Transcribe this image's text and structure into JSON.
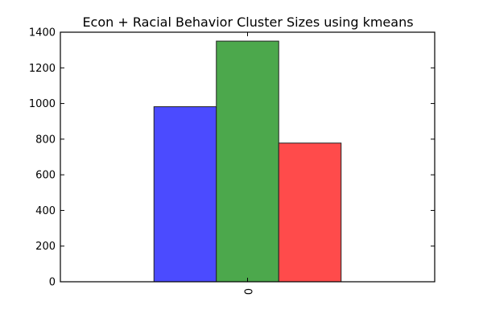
{
  "chart_data": {
    "type": "bar",
    "title": "Econ + Racial Behavior Cluster Sizes using kmeans",
    "xlabel": "",
    "ylabel": "",
    "categories": [
      "0"
    ],
    "series": [
      {
        "values": [
          982
        ],
        "color": "#4b4bff"
      },
      {
        "values": [
          1350
        ],
        "color": "#4ca84c"
      },
      {
        "values": [
          778
        ],
        "color": "#ff4b4b"
      }
    ],
    "ylim": [
      0,
      1400
    ],
    "yticks": [
      0,
      200,
      400,
      600,
      800,
      1000,
      1200,
      1400
    ],
    "grid": false,
    "legend": "none"
  }
}
